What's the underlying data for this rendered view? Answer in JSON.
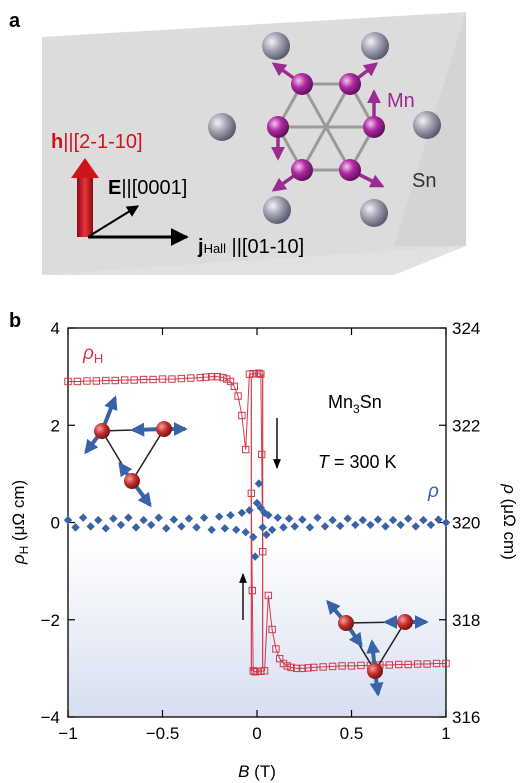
{
  "panel_a": {
    "label": "a",
    "h_bold": "h",
    "h_rest": "||[2-1-10]",
    "e_bold": "E",
    "e_rest": "||[0001]",
    "j_bold": "j",
    "j_sub": "Hall",
    "j_rest": " ||[01-10]",
    "mn_label": "Mn",
    "sn_label": "Sn",
    "colors": {
      "arrow_h": "#d0121b",
      "mn_atom": "#9c2b8f",
      "sn_atom": "#8c8c9c",
      "box": "#dedede"
    }
  },
  "panel_b": {
    "label": "b",
    "compound_prefix": "Mn",
    "compound_sub": "3",
    "compound_suffix": "Sn",
    "temp_symbol": "T",
    "temp_rest": " = 300 K",
    "rho_h_label": "ρ",
    "rho_h_sub": "H",
    "rho_label": "ρ",
    "colors": {
      "rho_h": "#d03a4a",
      "rho": "#3a62a6",
      "atom": "#c3302e",
      "spin": "#3a62a6"
    }
  },
  "chart_data": {
    "type": "scatter",
    "xlabel_symbol": "B",
    "xlabel_unit": " (T)",
    "ylabel_left_symbol": "ρ",
    "ylabel_left_sub": "H",
    "ylabel_left_unit": " (μΩ cm)",
    "ylabel_right_symbol": "ρ",
    "ylabel_right_unit": " (μΩ cm)",
    "xlim": [
      -1,
      1
    ],
    "ylim_left": [
      -4,
      4
    ],
    "ylim_right": [
      316,
      324
    ],
    "x_ticks": [
      -1,
      -0.5,
      0,
      0.5,
      1
    ],
    "x_tick_labels": [
      "−1",
      "−0.5",
      "0",
      "0.5",
      "1"
    ],
    "y_left_ticks": [
      -4,
      -2,
      0,
      2,
      4
    ],
    "y_left_tick_labels": [
      "−4",
      "−2",
      "0",
      "2",
      "4"
    ],
    "y_right_ticks": [
      316,
      318,
      320,
      322,
      324
    ],
    "y_right_tick_labels": [
      "316",
      "318",
      "320",
      "322",
      "324"
    ],
    "grid": false,
    "series": [
      {
        "name": "ρH",
        "axis": "left",
        "marker": "open-square",
        "branch_down_x": [
          -1.0,
          -0.95,
          -0.9,
          -0.85,
          -0.8,
          -0.75,
          -0.7,
          -0.65,
          -0.6,
          -0.55,
          -0.5,
          -0.45,
          -0.4,
          -0.35,
          -0.3,
          -0.27,
          -0.24,
          -0.21,
          -0.18,
          -0.16,
          -0.14,
          -0.12,
          -0.1,
          -0.08,
          -0.06,
          -0.04,
          -0.02,
          0.0,
          0.01,
          0.02,
          0.025,
          0.03
        ],
        "branch_down_y": [
          2.9,
          2.9,
          2.91,
          2.91,
          2.92,
          2.92,
          2.93,
          2.93,
          2.94,
          2.94,
          2.95,
          2.95,
          2.96,
          2.97,
          2.98,
          2.99,
          3.0,
          3.0,
          2.98,
          2.95,
          2.9,
          2.8,
          2.6,
          2.2,
          1.5,
          3.05,
          3.06,
          3.06,
          3.07,
          3.05,
          1.4,
          -0.6
        ],
        "branch_up_x": [
          1.0,
          0.95,
          0.9,
          0.85,
          0.8,
          0.75,
          0.7,
          0.65,
          0.6,
          0.55,
          0.5,
          0.45,
          0.4,
          0.35,
          0.3,
          0.27,
          0.24,
          0.21,
          0.18,
          0.16,
          0.14,
          0.12,
          0.1,
          0.08,
          0.06,
          0.04,
          0.02,
          0.0,
          -0.01,
          -0.02,
          -0.025,
          -0.03
        ],
        "branch_up_y": [
          -2.9,
          -2.9,
          -2.91,
          -2.91,
          -2.92,
          -2.92,
          -2.93,
          -2.93,
          -2.94,
          -2.94,
          -2.95,
          -2.95,
          -2.96,
          -2.97,
          -2.98,
          -2.99,
          -3.0,
          -3.0,
          -2.98,
          -2.95,
          -2.9,
          -2.8,
          -2.6,
          -2.2,
          -1.5,
          -3.05,
          -3.06,
          -3.06,
          -3.07,
          -3.05,
          -1.4,
          0.6
        ]
      },
      {
        "name": "ρ",
        "axis": "right",
        "marker": "filled-diamond",
        "x": [
          -1.0,
          -0.96,
          -0.92,
          -0.88,
          -0.84,
          -0.8,
          -0.76,
          -0.72,
          -0.68,
          -0.64,
          -0.6,
          -0.56,
          -0.52,
          -0.48,
          -0.44,
          -0.4,
          -0.36,
          -0.32,
          -0.28,
          -0.24,
          -0.2,
          -0.17,
          -0.14,
          -0.11,
          -0.08,
          -0.06,
          -0.04,
          -0.02,
          -0.01,
          0.0,
          0.01,
          0.02,
          0.03,
          0.04,
          0.05,
          0.06,
          0.08,
          0.11,
          0.14,
          0.17,
          0.2,
          0.24,
          0.28,
          0.32,
          0.36,
          0.4,
          0.44,
          0.48,
          0.52,
          0.56,
          0.6,
          0.64,
          0.68,
          0.72,
          0.76,
          0.8,
          0.84,
          0.88,
          0.92,
          0.96,
          1.0
        ],
        "y": [
          320.05,
          319.9,
          320.1,
          319.92,
          320.05,
          319.88,
          320.08,
          319.95,
          320.1,
          319.9,
          320.05,
          319.95,
          320.1,
          319.88,
          320.06,
          319.92,
          320.08,
          319.9,
          320.1,
          319.85,
          320.12,
          319.88,
          320.15,
          319.85,
          320.2,
          319.8,
          320.25,
          319.7,
          319.3,
          320.4,
          320.8,
          320.3,
          319.9,
          320.2,
          319.75,
          320.15,
          319.85,
          320.1,
          319.9,
          320.08,
          319.92,
          320.06,
          319.9,
          320.1,
          319.92,
          320.05,
          319.93,
          320.08,
          319.95,
          320.05,
          319.95,
          320.06,
          319.92,
          320.05,
          319.95,
          320.08,
          319.92,
          320.05,
          319.95,
          320.06,
          320.0
        ]
      }
    ]
  }
}
